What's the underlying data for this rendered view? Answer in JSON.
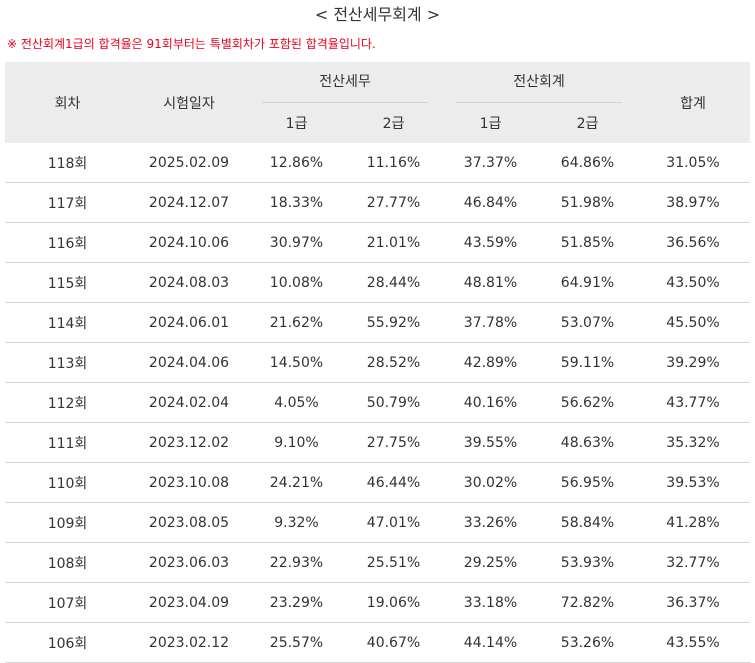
{
  "page": {
    "title": "< 전산세무회계 >",
    "notice": "※ 전산회계1급의 합격율은 91회부터는 특별회차가 포함된 합격율입니다."
  },
  "table": {
    "headers": {
      "round": "회차",
      "exam_date": "시험일자",
      "group_tax": "전산세무",
      "group_accounting": "전산회계",
      "total": "합계",
      "grade1": "1급",
      "grade2": "2급"
    },
    "rows": [
      {
        "round": "118회",
        "date": "2025.02.09",
        "tax1": "12.86%",
        "tax2": "11.16%",
        "acc1": "37.37%",
        "acc2": "64.86%",
        "total": "31.05%"
      },
      {
        "round": "117회",
        "date": "2024.12.07",
        "tax1": "18.33%",
        "tax2": "27.77%",
        "acc1": "46.84%",
        "acc2": "51.98%",
        "total": "38.97%"
      },
      {
        "round": "116회",
        "date": "2024.10.06",
        "tax1": "30.97%",
        "tax2": "21.01%",
        "acc1": "43.59%",
        "acc2": "51.85%",
        "total": "36.56%"
      },
      {
        "round": "115회",
        "date": "2024.08.03",
        "tax1": "10.08%",
        "tax2": "28.44%",
        "acc1": "48.81%",
        "acc2": "64.91%",
        "total": "43.50%"
      },
      {
        "round": "114회",
        "date": "2024.06.01",
        "tax1": "21.62%",
        "tax2": "55.92%",
        "acc1": "37.78%",
        "acc2": "53.07%",
        "total": "45.50%"
      },
      {
        "round": "113회",
        "date": "2024.04.06",
        "tax1": "14.50%",
        "tax2": "28.52%",
        "acc1": "42.89%",
        "acc2": "59.11%",
        "total": "39.29%"
      },
      {
        "round": "112회",
        "date": "2024.02.04",
        "tax1": "4.05%",
        "tax2": "50.79%",
        "acc1": "40.16%",
        "acc2": "56.62%",
        "total": "43.77%"
      },
      {
        "round": "111회",
        "date": "2023.12.02",
        "tax1": "9.10%",
        "tax2": "27.75%",
        "acc1": "39.55%",
        "acc2": "48.63%",
        "total": "35.32%"
      },
      {
        "round": "110회",
        "date": "2023.10.08",
        "tax1": "24.21%",
        "tax2": "46.44%",
        "acc1": "30.02%",
        "acc2": "56.95%",
        "total": "39.53%"
      },
      {
        "round": "109회",
        "date": "2023.08.05",
        "tax1": "9.32%",
        "tax2": "47.01%",
        "acc1": "33.26%",
        "acc2": "58.84%",
        "total": "41.28%"
      },
      {
        "round": "108회",
        "date": "2023.06.03",
        "tax1": "22.93%",
        "tax2": "25.51%",
        "acc1": "29.25%",
        "acc2": "53.93%",
        "total": "32.77%"
      },
      {
        "round": "107회",
        "date": "2023.04.09",
        "tax1": "23.29%",
        "tax2": "19.06%",
        "acc1": "33.18%",
        "acc2": "72.82%",
        "total": "36.37%"
      },
      {
        "round": "106회",
        "date": "2023.02.12",
        "tax1": "25.57%",
        "tax2": "40.67%",
        "acc1": "44.14%",
        "acc2": "53.26%",
        "total": "43.55%"
      }
    ]
  },
  "colors": {
    "header_bg": "#ececec",
    "notice_text": "#e8001c",
    "row_border": "#d6d6d6"
  }
}
